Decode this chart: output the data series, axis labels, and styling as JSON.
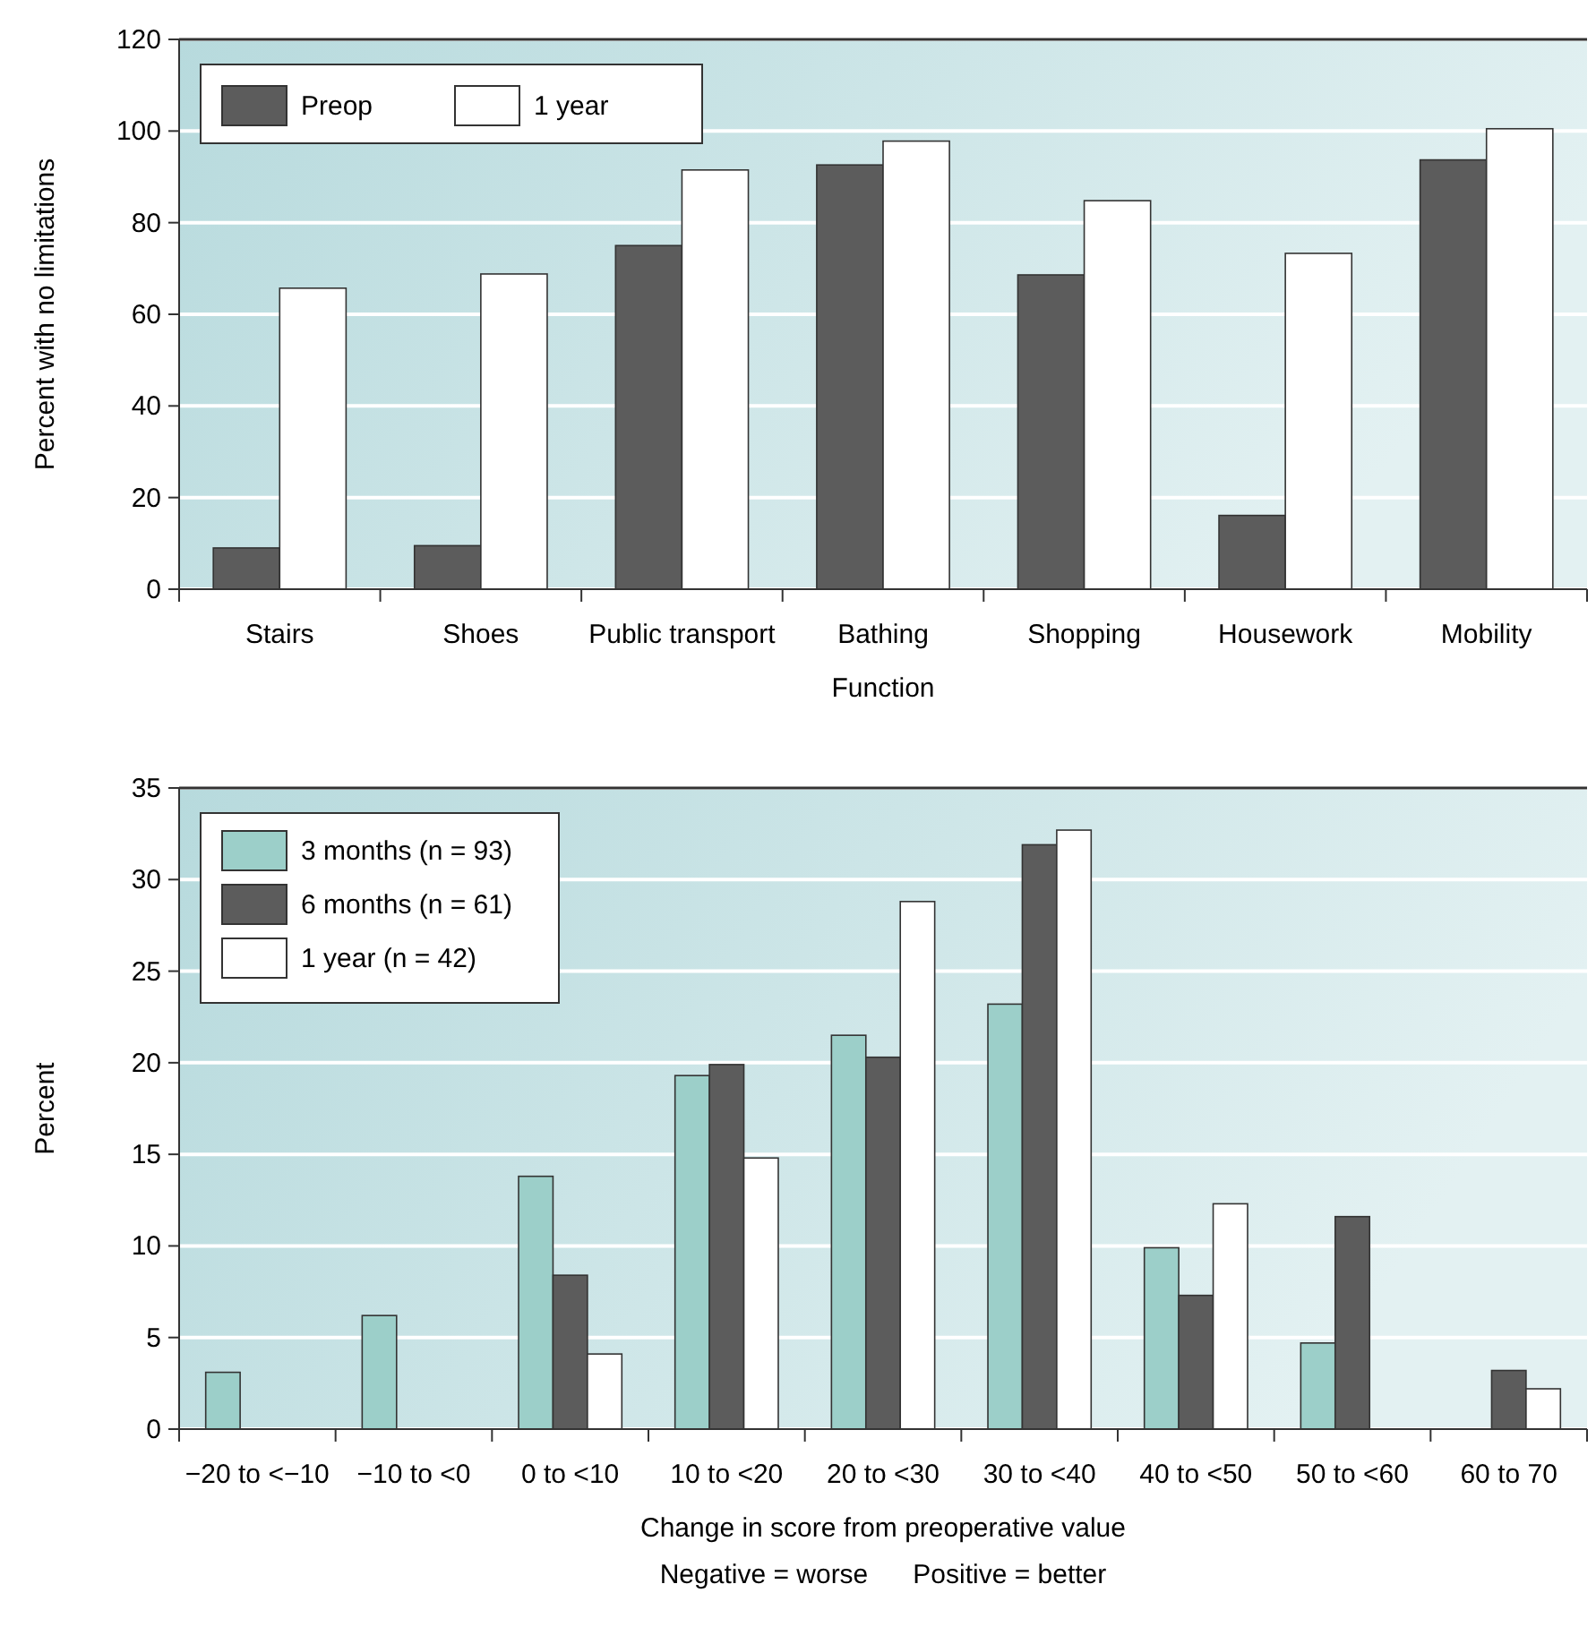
{
  "chart_data": [
    {
      "type": "bar",
      "ylabel": "Percent with no limitations",
      "xlabel": "Function",
      "categories": [
        "Stairs",
        "Shoes",
        "Public transport",
        "Bathing",
        "Shopping",
        "Housework",
        "Mobility"
      ],
      "series": [
        {
          "name": "Preop",
          "color": "#5c5c5c",
          "values": [
            9,
            9.5,
            75,
            92.6,
            68.6,
            16.1,
            93.7
          ]
        },
        {
          "name": "1 year",
          "color": "#ffffff",
          "values": [
            65.7,
            68.8,
            91.5,
            97.8,
            84.8,
            73.3,
            100.5
          ]
        }
      ],
      "ylim": [
        0,
        120
      ],
      "yticks": [
        0,
        20,
        40,
        60,
        80,
        100,
        120
      ],
      "grid": "y",
      "legend": "top left"
    },
    {
      "type": "bar",
      "ylabel": "Percent",
      "xlabel": "Change in score from preoperative value",
      "categories": [
        "−20 to <−10",
        "−10 to <0",
        "0 to <10",
        "10 to <20",
        "20 to <30",
        "30 to <40",
        "40 to <50",
        "50 to <60",
        "60 to 70"
      ],
      "series": [
        {
          "name": "3 months (n = 93)",
          "color": "#9ccfc9",
          "values": [
            3.1,
            6.2,
            13.8,
            19.3,
            21.5,
            23.2,
            9.9,
            4.7,
            null
          ]
        },
        {
          "name": "6 months (n = 61)",
          "color": "#5c5c5c",
          "values": [
            null,
            null,
            8.4,
            19.9,
            20.3,
            31.9,
            7.3,
            11.6,
            3.2
          ]
        },
        {
          "name": "1 year (n = 42)",
          "color": "#ffffff",
          "values": [
            null,
            null,
            4.1,
            14.8,
            28.8,
            32.7,
            12.3,
            null,
            2.2
          ]
        }
      ],
      "ylim": [
        0,
        35
      ],
      "yticks": [
        0,
        5,
        10,
        15,
        20,
        25,
        30,
        35
      ],
      "grid": "y",
      "legend": "top left",
      "annotations": [
        "Negative = worse      Positive = better"
      ]
    }
  ]
}
